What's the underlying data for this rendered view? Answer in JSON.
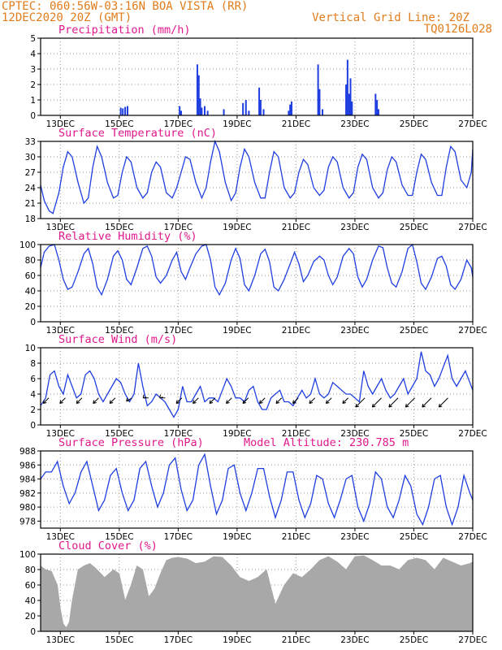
{
  "header": {
    "line1": "CPTEC: 060:56W-03:16N BOA VISTA (RR)",
    "line2_left": "12DEC2020 20Z (GMT)",
    "line2_right": "Vertical Grid Line: 20Z",
    "line3_right": "TQ0126L028"
  },
  "x_axis": {
    "tick_labels": [
      "13DEC",
      "15DEC",
      "17DEC",
      "19DEC",
      "21DEC",
      "23DEC",
      "25DEC",
      "27DEC"
    ],
    "tick_days": [
      13,
      15,
      17,
      19,
      21,
      23,
      25,
      27
    ],
    "start_day": 12.33,
    "end_day": 27.0
  },
  "colors": {
    "line": "#1f3ee0",
    "bars": "#1f3ee0",
    "cloud": "#a8a8a8",
    "title": "#e0188c",
    "header": "#e07c1c",
    "grid": "#9a9a9a"
  },
  "chart_data": [
    {
      "type": "bar",
      "title": "Precipitation (mm/h)",
      "ylim": [
        0,
        5
      ],
      "yticks": [
        0,
        1,
        2,
        3,
        4,
        5
      ],
      "x": [
        15.05,
        15.12,
        15.2,
        15.28,
        17.05,
        17.1,
        17.65,
        17.7,
        17.75,
        17.8,
        17.9,
        18.0,
        18.55,
        19.2,
        19.3,
        19.4,
        19.75,
        19.8,
        19.9,
        20.75,
        20.8,
        20.85,
        21.75,
        21.8,
        21.9,
        22.7,
        22.75,
        22.8,
        22.85,
        22.9,
        23.7,
        23.75,
        23.8
      ],
      "values": [
        0.5,
        0.45,
        0.55,
        0.6,
        0.6,
        0.3,
        3.3,
        2.6,
        1.1,
        0.5,
        0.6,
        0.3,
        0.4,
        0.8,
        1.0,
        0.3,
        1.8,
        1.0,
        0.4,
        0.3,
        0.7,
        0.9,
        3.3,
        1.7,
        0.4,
        2.0,
        3.6,
        1.4,
        2.4,
        0.9,
        1.4,
        1.0,
        0.4
      ]
    },
    {
      "type": "line",
      "title": "Surface Temperature (nC)",
      "ylim": [
        18,
        33
      ],
      "yticks": [
        18,
        21,
        24,
        27,
        30,
        33
      ],
      "x": [
        12.33,
        12.45,
        12.62,
        12.75,
        12.95,
        13.1,
        13.25,
        13.4,
        13.6,
        13.8,
        13.95,
        14.1,
        14.25,
        14.4,
        14.6,
        14.8,
        14.95,
        15.1,
        15.25,
        15.4,
        15.6,
        15.8,
        15.95,
        16.1,
        16.25,
        16.4,
        16.6,
        16.8,
        16.95,
        17.1,
        17.25,
        17.4,
        17.6,
        17.8,
        17.95,
        18.1,
        18.25,
        18.4,
        18.6,
        18.8,
        18.95,
        19.1,
        19.25,
        19.4,
        19.6,
        19.8,
        19.95,
        20.1,
        20.25,
        20.4,
        20.6,
        20.8,
        20.95,
        21.1,
        21.25,
        21.4,
        21.6,
        21.8,
        21.95,
        22.1,
        22.25,
        22.4,
        22.6,
        22.8,
        22.95,
        23.1,
        23.25,
        23.4,
        23.6,
        23.8,
        23.95,
        24.1,
        24.25,
        24.4,
        24.6,
        24.8,
        24.95,
        25.1,
        25.25,
        25.4,
        25.6,
        25.8,
        25.95,
        26.1,
        26.25,
        26.4,
        26.6,
        26.8,
        26.95,
        27.0
      ],
      "values": [
        24.5,
        21.5,
        19.5,
        19,
        23,
        28,
        31,
        30,
        25,
        21,
        22,
        28,
        32,
        30,
        25,
        22,
        22.5,
        27,
        30,
        29,
        24,
        22,
        23,
        27,
        29,
        28,
        23,
        22,
        24,
        27,
        30,
        29.5,
        25,
        22,
        24,
        29,
        33,
        31,
        25,
        21.5,
        23,
        28,
        31.5,
        30,
        25,
        22,
        22,
        27,
        31,
        30,
        24,
        22,
        23,
        27,
        29.5,
        28.5,
        24,
        22.5,
        23.5,
        28,
        30,
        29,
        24,
        22,
        23,
        28,
        30.5,
        29.5,
        24,
        22,
        23,
        27.5,
        30,
        29,
        24.5,
        22.5,
        22.5,
        27,
        30.5,
        29.5,
        25,
        22.5,
        22.5,
        28,
        32,
        31,
        25.5,
        24,
        27,
        31.5
      ]
    },
    {
      "type": "line",
      "title": "Relative Humidity (%)",
      "ylim": [
        0,
        100
      ],
      "yticks": [
        0,
        20,
        40,
        60,
        80,
        100
      ],
      "x": [
        12.33,
        12.45,
        12.62,
        12.8,
        12.95,
        13.1,
        13.25,
        13.4,
        13.6,
        13.8,
        13.95,
        14.1,
        14.25,
        14.4,
        14.6,
        14.8,
        14.95,
        15.1,
        15.25,
        15.4,
        15.6,
        15.8,
        15.95,
        16.1,
        16.25,
        16.4,
        16.6,
        16.8,
        16.95,
        17.1,
        17.25,
        17.4,
        17.6,
        17.8,
        17.95,
        18.1,
        18.25,
        18.4,
        18.6,
        18.8,
        18.95,
        19.1,
        19.25,
        19.4,
        19.6,
        19.8,
        19.95,
        20.1,
        20.25,
        20.4,
        20.6,
        20.8,
        20.95,
        21.1,
        21.25,
        21.4,
        21.6,
        21.8,
        21.95,
        22.1,
        22.25,
        22.4,
        22.6,
        22.8,
        22.95,
        23.1,
        23.25,
        23.4,
        23.6,
        23.8,
        23.95,
        24.1,
        24.25,
        24.4,
        24.6,
        24.8,
        24.95,
        25.1,
        25.25,
        25.4,
        25.6,
        25.8,
        25.95,
        26.1,
        26.25,
        26.4,
        26.6,
        26.8,
        26.95,
        27.0
      ],
      "values": [
        70,
        90,
        98,
        100,
        80,
        55,
        42,
        45,
        65,
        88,
        95,
        75,
        45,
        35,
        55,
        85,
        92,
        80,
        55,
        48,
        70,
        95,
        98,
        85,
        58,
        50,
        60,
        80,
        90,
        65,
        55,
        70,
        88,
        98,
        100,
        80,
        45,
        35,
        50,
        80,
        95,
        82,
        48,
        40,
        60,
        88,
        94,
        78,
        45,
        40,
        55,
        75,
        90,
        75,
        52,
        60,
        78,
        85,
        80,
        60,
        48,
        58,
        85,
        95,
        88,
        58,
        45,
        55,
        80,
        98,
        96,
        70,
        50,
        45,
        65,
        95,
        100,
        78,
        50,
        42,
        58,
        82,
        85,
        72,
        48,
        42,
        55,
        80,
        70,
        58
      ]
    },
    {
      "type": "line",
      "title": "Surface Wind (m/s)",
      "ylim": [
        0,
        10
      ],
      "yticks": [
        0,
        2,
        4,
        6,
        8,
        10
      ],
      "x": [
        12.33,
        12.5,
        12.65,
        12.8,
        12.95,
        13.1,
        13.25,
        13.4,
        13.55,
        13.7,
        13.85,
        14.0,
        14.15,
        14.3,
        14.45,
        14.6,
        14.75,
        14.9,
        15.05,
        15.2,
        15.35,
        15.5,
        15.65,
        15.8,
        15.95,
        16.1,
        16.25,
        16.4,
        16.55,
        16.7,
        16.85,
        17.0,
        17.15,
        17.3,
        17.45,
        17.6,
        17.75,
        17.9,
        18.05,
        18.2,
        18.35,
        18.5,
        18.65,
        18.8,
        18.95,
        19.1,
        19.25,
        19.4,
        19.55,
        19.7,
        19.85,
        20.0,
        20.15,
        20.3,
        20.45,
        20.6,
        20.75,
        20.9,
        21.05,
        21.2,
        21.35,
        21.5,
        21.65,
        21.8,
        21.95,
        22.1,
        22.25,
        22.4,
        22.55,
        22.7,
        22.85,
        23.0,
        23.15,
        23.3,
        23.45,
        23.6,
        23.75,
        23.9,
        24.05,
        24.2,
        24.35,
        24.5,
        24.65,
        24.8,
        24.95,
        25.1,
        25.25,
        25.4,
        25.55,
        25.7,
        25.85,
        26.0,
        26.15,
        26.3,
        26.45,
        26.6,
        26.75,
        26.9,
        27.0
      ],
      "values": [
        2.5,
        3.5,
        6.5,
        7,
        5,
        4,
        6.5,
        5,
        3.5,
        4,
        6.5,
        7,
        6,
        4,
        3,
        4,
        5,
        6,
        5.5,
        4,
        3,
        4,
        8,
        5,
        2.5,
        3,
        4,
        3.5,
        3,
        2,
        1,
        2,
        5,
        3,
        3,
        4,
        5,
        3,
        3.5,
        3.5,
        3,
        4.5,
        6,
        5,
        3.5,
        3.5,
        3,
        4.5,
        5,
        3,
        2,
        2,
        3.5,
        4,
        4.5,
        3,
        3,
        2.5,
        3.5,
        4.5,
        3.5,
        4,
        6,
        4,
        3.5,
        4,
        5.5,
        5,
        4.5,
        4,
        4,
        3.5,
        3,
        7,
        5,
        4,
        5,
        6,
        4.5,
        3.5,
        4,
        5,
        6,
        4,
        5,
        6,
        9.5,
        7,
        6.5,
        5,
        6,
        7.5,
        9,
        6,
        5,
        6,
        7,
        5.5,
        4.5
      ]
    },
    {
      "type": "line",
      "title": "Surface Pressure (hPa)",
      "annotation": "Model Altitude: 230.785 m",
      "ylim": [
        977,
        988
      ],
      "yticks": [
        978,
        980,
        982,
        984,
        986,
        988
      ],
      "x": [
        12.33,
        12.5,
        12.7,
        12.9,
        13.1,
        13.3,
        13.5,
        13.7,
        13.9,
        14.1,
        14.3,
        14.5,
        14.7,
        14.9,
        15.1,
        15.3,
        15.5,
        15.7,
        15.9,
        16.1,
        16.3,
        16.5,
        16.7,
        16.9,
        17.1,
        17.3,
        17.5,
        17.7,
        17.9,
        18.1,
        18.3,
        18.5,
        18.7,
        18.9,
        19.1,
        19.3,
        19.5,
        19.7,
        19.9,
        20.1,
        20.3,
        20.5,
        20.7,
        20.9,
        21.1,
        21.3,
        21.5,
        21.7,
        21.9,
        22.1,
        22.3,
        22.5,
        22.7,
        22.9,
        23.1,
        23.3,
        23.5,
        23.7,
        23.9,
        24.1,
        24.3,
        24.5,
        24.7,
        24.9,
        25.1,
        25.3,
        25.5,
        25.7,
        25.9,
        26.1,
        26.3,
        26.5,
        26.7,
        26.9,
        27.0
      ],
      "values": [
        984,
        985,
        985,
        986.5,
        983,
        980.5,
        982,
        985,
        986.5,
        983,
        979.5,
        981,
        984.5,
        985.5,
        982,
        979.5,
        981,
        985.5,
        986.5,
        983,
        980,
        982,
        986,
        987,
        982.5,
        979.5,
        981,
        986,
        987.5,
        983,
        979,
        981,
        985.5,
        986,
        982,
        979.5,
        982,
        985.5,
        985.5,
        981.5,
        978.5,
        981,
        985,
        985,
        981,
        978.5,
        980.5,
        984.5,
        984,
        980.5,
        978.5,
        981,
        984,
        984.5,
        980,
        978,
        980.5,
        985,
        984,
        980,
        978.5,
        981,
        984.5,
        983,
        979,
        977.5,
        980,
        984,
        984.5,
        980,
        977.5,
        980,
        984.5,
        982,
        981
      ]
    },
    {
      "type": "area",
      "title": "Cloud Cover (%)",
      "ylim": [
        0,
        100
      ],
      "yticks": [
        0,
        20,
        40,
        60,
        80,
        100
      ],
      "x": [
        12.33,
        12.5,
        12.7,
        12.9,
        13.0,
        13.1,
        13.2,
        13.3,
        13.4,
        13.6,
        13.8,
        14.0,
        14.2,
        14.5,
        14.8,
        15.0,
        15.2,
        15.4,
        15.6,
        15.8,
        16.0,
        16.2,
        16.4,
        16.6,
        16.8,
        17.0,
        17.3,
        17.6,
        17.9,
        18.2,
        18.5,
        18.8,
        19.1,
        19.4,
        19.7,
        20.0,
        20.3,
        20.6,
        20.9,
        21.2,
        21.5,
        21.8,
        22.1,
        22.4,
        22.7,
        23.0,
        23.3,
        23.6,
        23.9,
        24.2,
        24.5,
        24.8,
        25.1,
        25.4,
        25.7,
        26.0,
        26.3,
        26.6,
        26.9,
        27.0
      ],
      "values": [
        85,
        80,
        78,
        60,
        30,
        10,
        5,
        12,
        40,
        80,
        85,
        88,
        82,
        70,
        80,
        75,
        40,
        60,
        85,
        80,
        45,
        55,
        75,
        92,
        95,
        96,
        94,
        88,
        90,
        97,
        96,
        85,
        70,
        65,
        70,
        80,
        35,
        60,
        75,
        70,
        80,
        92,
        97,
        90,
        80,
        97,
        98,
        92,
        85,
        85,
        80,
        92,
        95,
        92,
        80,
        95,
        90,
        85,
        88,
        90
      ]
    }
  ]
}
